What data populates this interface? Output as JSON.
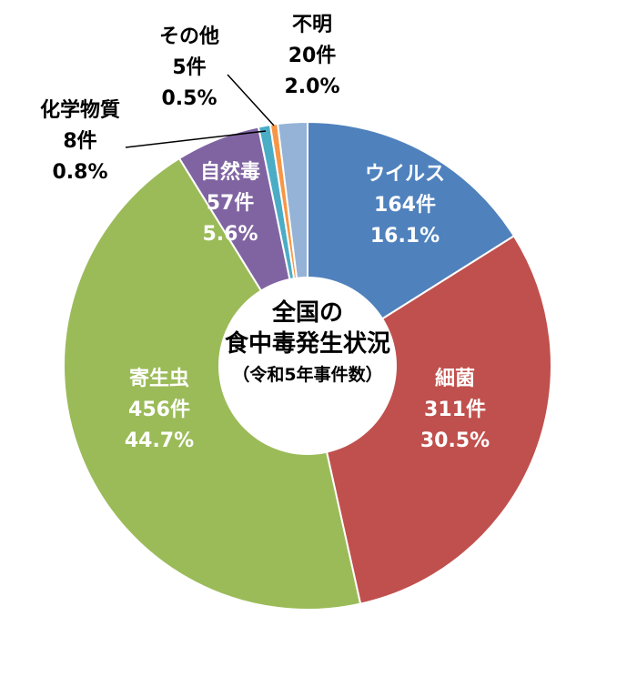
{
  "chart_data": {
    "type": "pie",
    "style": "donut",
    "title_lines": [
      "全国の",
      "食中毒発生状況",
      "（令和5年事件数）"
    ],
    "slices": [
      {
        "name": "ウイルス",
        "count": "164件",
        "percent": "16.1%",
        "value": 164,
        "color": "#4F81BD",
        "label_position": "inside"
      },
      {
        "name": "細菌",
        "count": "311件",
        "percent": "30.5%",
        "value": 311,
        "color": "#C0504D",
        "label_position": "inside"
      },
      {
        "name": "寄生虫",
        "count": "456件",
        "percent": "44.7%",
        "value": 456,
        "color": "#9BBB59",
        "label_position": "inside"
      },
      {
        "name": "自然毒",
        "count": "57件",
        "percent": "5.6%",
        "value": 57,
        "color": "#8064A2",
        "label_position": "inside"
      },
      {
        "name": "化学物質",
        "count": "8件",
        "percent": "0.8%",
        "value": 8,
        "color": "#4BACC6",
        "label_position": "outside"
      },
      {
        "name": "その他",
        "count": "5件",
        "percent": "0.5%",
        "value": 5,
        "color": "#F79646",
        "label_position": "outside"
      },
      {
        "name": "不明",
        "count": "20件",
        "percent": "2.0%",
        "value": 20,
        "color": "#95B3D7",
        "label_position": "outside"
      }
    ]
  }
}
